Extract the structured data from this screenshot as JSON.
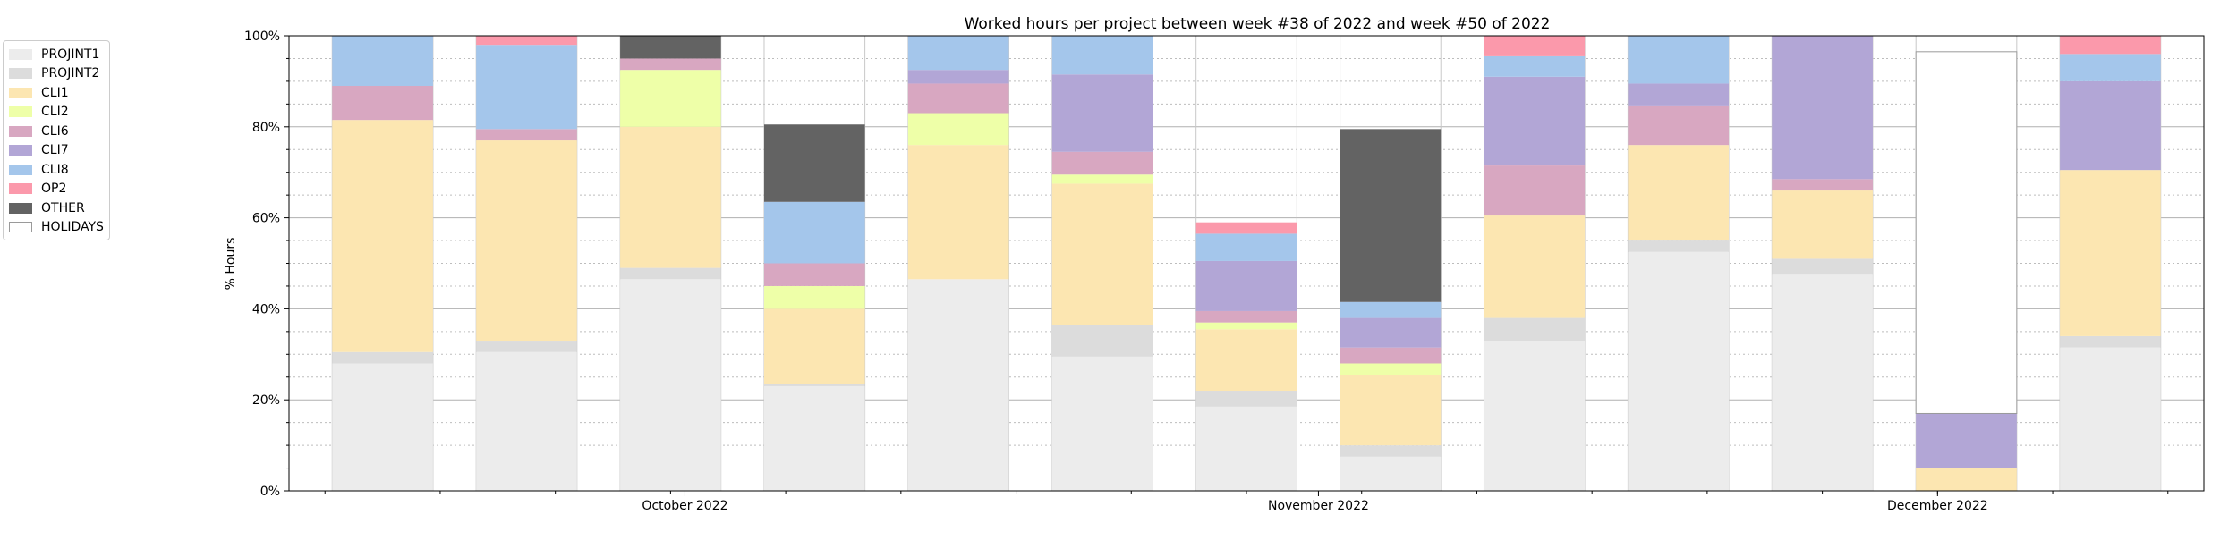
{
  "chart_data": {
    "type": "bar",
    "stacked": true,
    "title": "Worked hours per project between week #38 of 2022 and week #50 of 2022",
    "xlabel": "",
    "ylabel": "% Hours",
    "ylim": [
      0,
      100
    ],
    "y_ticks": [
      "0%",
      "20%",
      "40%",
      "60%",
      "80%",
      "100%"
    ],
    "x_ticks": [
      "October 2022",
      "November 2022",
      "December 2022"
    ],
    "x_tick_positions": [
      2.1,
      6.5,
      10.8
    ],
    "bar_count": 13,
    "grid": true,
    "legend_position": "outside-left",
    "series": [
      {
        "name": "PROJINT1",
        "color": "#ececec",
        "values": [
          28,
          30.5,
          46.5,
          23,
          46.5,
          29.5,
          18.5,
          7.5,
          33,
          52.5,
          47.5,
          0,
          31.5
        ]
      },
      {
        "name": "PROJINT2",
        "color": "#dcdcdc",
        "values": [
          2.5,
          2.5,
          2.5,
          0.5,
          0,
          7,
          3.5,
          2.5,
          5,
          2.5,
          3.5,
          0,
          2.5
        ]
      },
      {
        "name": "CLI1",
        "color": "#fce6b1",
        "values": [
          51,
          44,
          31,
          16.5,
          29.5,
          31,
          13.5,
          15.5,
          22.5,
          21,
          15,
          5,
          36.5
        ]
      },
      {
        "name": "CLI2",
        "color": "#eeffa8",
        "values": [
          0,
          0,
          12.5,
          5,
          7,
          2,
          1.5,
          2.5,
          0,
          0,
          0,
          0,
          0
        ]
      },
      {
        "name": "CLI6",
        "color": "#d8a7c1",
        "values": [
          7.5,
          2.5,
          2.5,
          5,
          6.5,
          5,
          2.5,
          3.5,
          11,
          8.5,
          2.5,
          0,
          0
        ]
      },
      {
        "name": "CLI7",
        "color": "#b2a6d6",
        "values": [
          0,
          0,
          0,
          0,
          3,
          17,
          11,
          6.5,
          19.5,
          5,
          31.5,
          12,
          19.5
        ]
      },
      {
        "name": "CLI8",
        "color": "#a4c6eb",
        "values": [
          11,
          18.5,
          0,
          13.5,
          7.5,
          8.5,
          6,
          3.5,
          4.5,
          10.5,
          0,
          0,
          6
        ]
      },
      {
        "name": "OP2",
        "color": "#fb99ab",
        "values": [
          0,
          2,
          0,
          0,
          0,
          0,
          2.5,
          0,
          4.5,
          0,
          0,
          0,
          4
        ]
      },
      {
        "name": "OTHER",
        "color": "#636363",
        "values": [
          0,
          0,
          5,
          17,
          0,
          0,
          0,
          38,
          0,
          0,
          0,
          0,
          0
        ]
      },
      {
        "name": "HOLIDAYS",
        "color": "#ffffff",
        "values": [
          0,
          0,
          0,
          0,
          0,
          0,
          0,
          0,
          0,
          0,
          0,
          79.5,
          0
        ]
      }
    ]
  }
}
